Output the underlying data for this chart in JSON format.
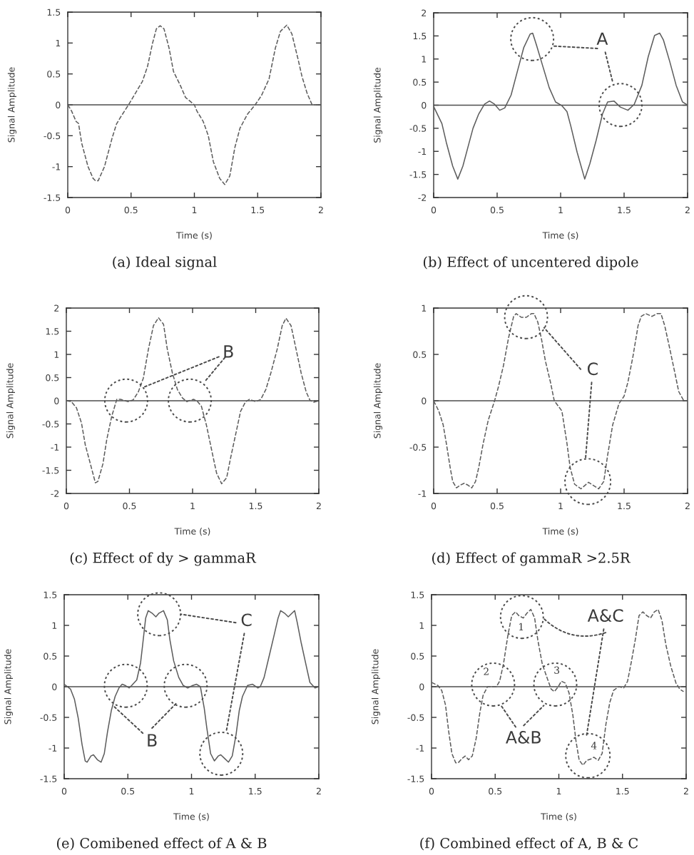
{
  "chart_data": [
    {
      "type": "line",
      "title": "(a) Ideal signal",
      "xlabel": "Time (s)",
      "ylabel": "Signal Amplitude",
      "color": "#5c5c5c",
      "line_style": "dashed",
      "x": [
        0,
        0.03,
        0.066,
        0.085,
        0.11,
        0.16,
        0.2,
        0.22,
        0.24,
        0.29,
        0.35,
        0.385,
        0.42,
        0.48,
        0.535,
        0.59,
        0.63,
        0.67,
        0.7,
        0.73,
        0.76,
        0.8,
        0.835,
        0.89,
        0.93,
        1.0,
        1.02,
        1.07,
        1.11,
        1.15,
        1.2,
        1.24,
        1.28,
        1.32,
        1.36,
        1.42,
        1.48,
        1.53,
        1.59,
        1.64,
        1.68,
        1.73,
        1.77,
        1.82,
        1.85,
        1.89,
        1.93,
        2.0
      ],
      "values": [
        0,
        -0.1,
        -0.27,
        -0.3,
        -0.62,
        -1.0,
        -1.19,
        -1.23,
        -1.23,
        -1.0,
        -0.54,
        -0.31,
        -0.19,
        0,
        0.19,
        0.38,
        0.62,
        1.0,
        1.23,
        1.28,
        1.23,
        0.92,
        0.54,
        0.31,
        0.12,
        0,
        -0.1,
        -0.27,
        -0.5,
        -0.92,
        -1.19,
        -1.29,
        -1.15,
        -0.69,
        -0.38,
        -0.15,
        0,
        0.15,
        0.42,
        0.92,
        1.19,
        1.29,
        1.15,
        0.73,
        0.46,
        0.19,
        0,
        0
      ],
      "xlim": [
        0,
        2
      ],
      "xticks": [
        0,
        0.5,
        1,
        1.5,
        2
      ],
      "ylim": [
        -1.5,
        1.5
      ],
      "yticks": [
        -1.5,
        -1,
        -0.5,
        0,
        0.5,
        1,
        1.5
      ],
      "ref_lines": [
        {
          "axis": "y",
          "value": 0,
          "color": "#4d4d4d"
        }
      ]
    },
    {
      "type": "line",
      "title": "(b) Effect of uncentered dipole",
      "xlabel": "Time (s)",
      "ylabel": "Signal Amplitude",
      "color": "#5c5c5c",
      "line_style": "solid",
      "x": [
        0,
        0.065,
        0.1,
        0.15,
        0.19,
        0.23,
        0.27,
        0.31,
        0.355,
        0.4,
        0.44,
        0.48,
        0.52,
        0.56,
        0.61,
        0.66,
        0.71,
        0.76,
        0.78,
        0.81,
        0.86,
        0.91,
        0.96,
        1.01,
        1.05,
        1.08,
        1.13,
        1.19,
        1.23,
        1.28,
        1.33,
        1.37,
        1.42,
        1.47,
        1.53,
        1.58,
        1.64,
        1.69,
        1.74,
        1.78,
        1.81,
        1.86,
        1.91,
        1.96,
        2.0
      ],
      "values": [
        -0.03,
        -0.4,
        -0.81,
        -1.32,
        -1.6,
        -1.32,
        -0.91,
        -0.5,
        -0.19,
        0.02,
        0.09,
        0.02,
        -0.11,
        -0.06,
        0.22,
        0.74,
        1.25,
        1.54,
        1.56,
        1.3,
        0.84,
        0.38,
        0.07,
        -0.01,
        -0.14,
        -0.45,
        -1.02,
        -1.6,
        -1.27,
        -0.76,
        -0.19,
        0.07,
        0.09,
        -0.04,
        -0.11,
        0.02,
        0.43,
        1.05,
        1.51,
        1.56,
        1.41,
        0.94,
        0.43,
        0.07,
        0
      ],
      "xlim": [
        0,
        2
      ],
      "xticks": [
        0,
        0.5,
        1,
        1.5,
        2
      ],
      "ylim": [
        -2,
        2
      ],
      "yticks": [
        -2,
        -1.5,
        -1,
        -0.5,
        0,
        0.5,
        1,
        1.5,
        2
      ],
      "ref_lines": [
        {
          "axis": "y",
          "value": 0,
          "color": "#4d4d4d"
        }
      ],
      "annotations": [
        "A"
      ]
    },
    {
      "type": "line",
      "title": "(c) Effect of dy > gammaR",
      "xlabel": "Time (s)",
      "ylabel": "Signal Amplitude",
      "color": "#5c5c5c",
      "line_style": "dashed",
      "x": [
        0,
        0.04,
        0.08,
        0.12,
        0.15,
        0.2,
        0.23,
        0.25,
        0.29,
        0.32,
        0.36,
        0.4,
        0.43,
        0.465,
        0.49,
        0.53,
        0.57,
        0.61,
        0.65,
        0.69,
        0.73,
        0.77,
        0.8,
        0.84,
        0.88,
        0.92,
        0.955,
        0.98,
        1.01,
        1.04,
        1.07,
        1.11,
        1.15,
        1.19,
        1.23,
        1.27,
        1.3,
        1.34,
        1.38,
        1.42,
        1.45,
        1.5,
        1.54,
        1.58,
        1.62,
        1.67,
        1.71,
        1.74,
        1.78,
        1.82,
        1.86,
        1.9,
        1.93,
        1.96,
        2.0
      ],
      "values": [
        0,
        -0.02,
        -0.15,
        -0.48,
        -0.95,
        -1.46,
        -1.77,
        -1.74,
        -1.36,
        -0.84,
        -0.33,
        0.03,
        0.03,
        0,
        -0.02,
        0.02,
        0.19,
        0.49,
        1.11,
        1.62,
        1.79,
        1.65,
        1.11,
        0.6,
        0.24,
        0.06,
        -0.02,
        0.01,
        0.03,
        -0.02,
        -0.12,
        -0.53,
        -1.05,
        -1.56,
        -1.79,
        -1.66,
        -1.25,
        -0.74,
        -0.23,
        -0.02,
        0.03,
        -0.02,
        0.03,
        0.24,
        0.6,
        1.11,
        1.62,
        1.78,
        1.62,
        1.11,
        0.6,
        0.19,
        0.01,
        -0.03,
        0
      ],
      "xlim": [
        0,
        2
      ],
      "xticks": [
        0,
        0.5,
        1,
        1.5,
        2
      ],
      "ylim": [
        -2,
        2
      ],
      "yticks": [
        -2,
        -1.5,
        -1,
        -0.5,
        0,
        0.5,
        1,
        1.5,
        2
      ],
      "ref_lines": [
        {
          "axis": "y",
          "value": 0,
          "color": "#4d4d4d"
        }
      ],
      "annotations": [
        {
          "text": "B",
          "x": 0.61,
          "y": 0.29
        }
      ]
    },
    {
      "type": "line",
      "title": "(d) Effect of gammaR >2.5R",
      "xlabel": "Time (s)",
      "ylabel": "Signal Amplitude",
      "color": "#5c5c5c",
      "line_style": "dashed",
      "x": [
        0,
        0.04,
        0.075,
        0.1,
        0.13,
        0.15,
        0.18,
        0.21,
        0.24,
        0.27,
        0.3,
        0.33,
        0.355,
        0.39,
        0.43,
        0.48,
        0.51,
        0.55,
        0.59,
        0.63,
        0.65,
        0.69,
        0.73,
        0.77,
        0.79,
        0.82,
        0.85,
        0.88,
        0.92,
        0.95,
        1.01,
        1.05,
        1.075,
        1.11,
        1.16,
        1.22,
        1.3,
        1.34,
        1.37,
        1.41,
        1.46,
        1.5,
        1.53,
        1.57,
        1.61,
        1.635,
        1.67,
        1.72,
        1.76,
        1.79,
        1.82,
        1.86,
        1.9,
        1.93,
        1.97,
        2.0
      ],
      "values": [
        0,
        -0.11,
        -0.26,
        -0.46,
        -0.72,
        -0.87,
        -0.94,
        -0.91,
        -0.89,
        -0.91,
        -0.94,
        -0.87,
        -0.72,
        -0.46,
        -0.21,
        0,
        0.15,
        0.38,
        0.68,
        0.91,
        0.94,
        0.9,
        0.9,
        0.94,
        0.94,
        0.85,
        0.66,
        0.43,
        0.2,
        0,
        -0.11,
        -0.46,
        -0.72,
        -0.9,
        -0.95,
        -0.88,
        -0.95,
        -0.87,
        -0.59,
        -0.26,
        -0.03,
        0.05,
        0.2,
        0.48,
        0.81,
        0.91,
        0.94,
        0.91,
        0.94,
        0.94,
        0.81,
        0.56,
        0.3,
        0.1,
        0,
        0
      ],
      "xlim": [
        0,
        2
      ],
      "xticks": [
        0,
        0.5,
        1,
        1.5,
        2
      ],
      "ylim": [
        -1,
        1
      ],
      "yticks": [
        -1,
        -0.5,
        0,
        0.5,
        1
      ],
      "ref_lines": [
        {
          "axis": "y",
          "value": 0,
          "color": "#4d4d4d"
        }
      ],
      "annotations": [
        "C"
      ]
    },
    {
      "type": "line",
      "title": "(e) Comibened effect of A & B",
      "xlabel": "Time (s)",
      "ylabel": "Signal Amplitude",
      "color": "#5c5c5c",
      "line_style": "solid",
      "x": [
        0,
        0.05,
        0.08,
        0.11,
        0.14,
        0.165,
        0.18,
        0.21,
        0.23,
        0.26,
        0.29,
        0.315,
        0.34,
        0.37,
        0.4,
        0.43,
        0.455,
        0.48,
        0.51,
        0.53,
        0.57,
        0.6,
        0.615,
        0.64,
        0.66,
        0.69,
        0.72,
        0.745,
        0.78,
        0.81,
        0.83,
        0.86,
        0.9,
        0.935,
        0.97,
        1.01,
        1.04,
        1.07,
        1.08,
        1.1,
        1.12,
        1.15,
        1.18,
        1.21,
        1.23,
        1.26,
        1.29,
        1.32,
        1.35,
        1.375,
        1.4,
        1.44,
        1.48,
        1.52,
        1.54,
        1.57,
        1.61,
        1.65,
        1.68,
        1.7,
        1.73,
        1.76,
        1.79,
        1.81,
        1.83,
        1.86,
        1.9,
        1.93,
        1.97,
        2.0
      ],
      "values": [
        0.04,
        -0.04,
        -0.2,
        -0.51,
        -0.94,
        -1.21,
        -1.23,
        -1.13,
        -1.11,
        -1.19,
        -1.23,
        -1.09,
        -0.74,
        -0.39,
        -0.16,
        -0.02,
        0.04,
        0.02,
        -0.02,
        0.02,
        0.11,
        0.39,
        0.66,
        1.12,
        1.24,
        1.2,
        1.14,
        1.2,
        1.24,
        1.09,
        0.77,
        0.42,
        0.15,
        0.02,
        -0.02,
        0.02,
        0.04,
        0,
        -0.12,
        -0.35,
        -0.67,
        -1.09,
        -1.21,
        -1.13,
        -1.11,
        -1.17,
        -1.23,
        -1.13,
        -0.78,
        -0.39,
        -0.16,
        0.02,
        0.04,
        -0.02,
        0,
        0.15,
        0.5,
        0.85,
        1.12,
        1.24,
        1.2,
        1.14,
        1.2,
        1.24,
        1.05,
        0.73,
        0.35,
        0.07,
        -0.02,
        0
      ],
      "xlim": [
        0,
        2
      ],
      "xticks": [
        0,
        0.5,
        1,
        1.5,
        2
      ],
      "ylim": [
        -1.5,
        1.5
      ],
      "yticks": [
        -1.5,
        -1,
        -0.5,
        0,
        0.5,
        1,
        1.5
      ],
      "ref_lines": [
        {
          "axis": "y",
          "value": 0,
          "color": "#4d4d4d"
        }
      ],
      "annotations": [
        "C",
        {
          "text": "B",
          "x": 0.39,
          "y": -0.32
        }
      ]
    },
    {
      "type": "line",
      "title": "(f) Combined effect of A, B & C",
      "xlabel": "Time (s)",
      "ylabel": "Signal Amplitude",
      "color": "#5c5c5c",
      "line_style": "dashed",
      "x": [
        0,
        0.05,
        0.08,
        0.11,
        0.135,
        0.16,
        0.19,
        0.21,
        0.24,
        0.265,
        0.29,
        0.32,
        0.35,
        0.38,
        0.405,
        0.44,
        0.48,
        0.51,
        0.535,
        0.565,
        0.6,
        0.63,
        0.66,
        0.685,
        0.72,
        0.75,
        0.78,
        0.81,
        0.835,
        0.87,
        0.91,
        0.94,
        0.965,
        0.995,
        1.02,
        1.05,
        1.08,
        1.11,
        1.135,
        1.16,
        1.19,
        1.22,
        1.25,
        1.275,
        1.31,
        1.34,
        1.37,
        1.4,
        1.43,
        1.47,
        1.51,
        1.54,
        1.57,
        1.6,
        1.63,
        1.66,
        1.69,
        1.72,
        1.75,
        1.78,
        1.81,
        1.84,
        1.88,
        1.92,
        1.95,
        1.98
      ],
      "values": [
        0.07,
        0.02,
        -0.06,
        -0.3,
        -0.73,
        -1.09,
        -1.24,
        -1.24,
        -1.17,
        -1.13,
        -1.19,
        -1.13,
        -0.85,
        -0.42,
        -0.14,
        0,
        0,
        0,
        0.09,
        0.37,
        0.84,
        1.16,
        1.22,
        1.16,
        1.12,
        1.2,
        1.26,
        1.12,
        0.76,
        0.37,
        0.13,
        -0.04,
        -0.08,
        0,
        0.09,
        0.06,
        -0.1,
        -0.46,
        -0.89,
        -1.2,
        -1.28,
        -1.2,
        -1.18,
        -1.15,
        -1.2,
        -1.09,
        -0.61,
        -0.26,
        -0.06,
        0,
        -0.02,
        0.09,
        0.41,
        0.76,
        1.16,
        1.22,
        1.16,
        1.12,
        1.22,
        1.26,
        1.08,
        0.69,
        0.33,
        0.06,
        -0.04,
        -0.08
      ],
      "xlim": [
        0,
        2
      ],
      "xticks": [
        0,
        0.5,
        1,
        1.5,
        2
      ],
      "ylim": [
        -1.5,
        1.5
      ],
      "yticks": [
        -1.5,
        -1,
        -0.5,
        0,
        0.5,
        1,
        1.5
      ],
      "ref_lines": [
        {
          "axis": "y",
          "value": 0,
          "color": "#4d4d4d"
        }
      ],
      "annotations": [
        "A&C",
        {
          "text": "1",
          "x": 0.71,
          "y": 1.14
        },
        {
          "text": "2",
          "x": 0.48,
          "y": 0.04
        },
        {
          "text": "3",
          "x": 0.97,
          "y": 0.04
        },
        "A&B",
        {
          "text": "4",
          "x": 1.23,
          "y": -1.13
        }
      ]
    }
  ]
}
